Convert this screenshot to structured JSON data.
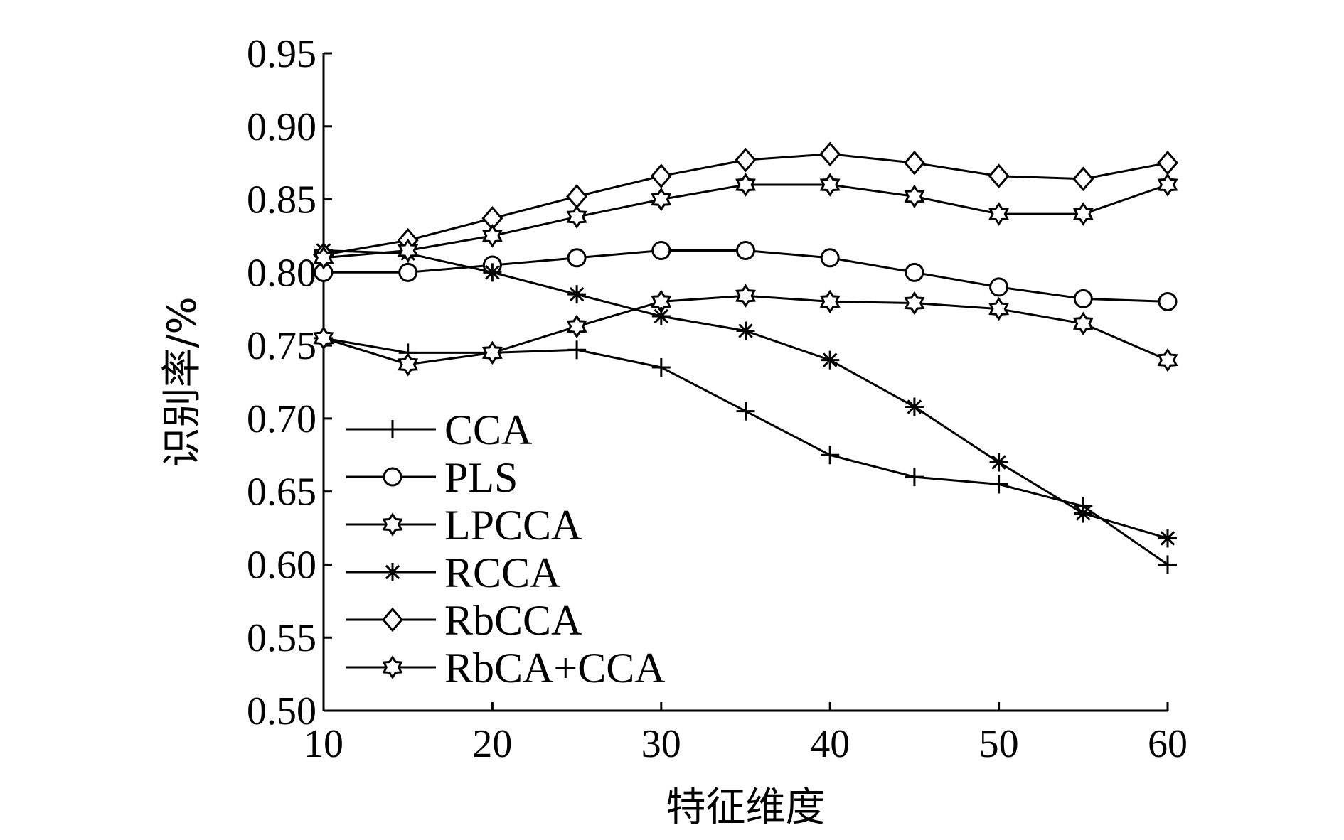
{
  "chart_data": {
    "type": "line",
    "xlabel": "特征维度",
    "ylabel": "识别率/%",
    "xlim": [
      10,
      60
    ],
    "ylim": [
      0.5,
      0.95
    ],
    "x_ticks": [
      "10",
      "20",
      "30",
      "40",
      "50",
      "60"
    ],
    "y_ticks": [
      "0.50",
      "0.55",
      "0.60",
      "0.65",
      "0.70",
      "0.75",
      "0.80",
      "0.85",
      "0.90",
      "0.95"
    ],
    "x": [
      10,
      15,
      20,
      25,
      30,
      35,
      40,
      45,
      50,
      55,
      60
    ],
    "legend_position": "lower-left",
    "grid": false,
    "series": [
      {
        "name": "CCA",
        "marker": "plus",
        "values": [
          0.755,
          0.745,
          0.745,
          0.747,
          0.735,
          0.705,
          0.675,
          0.66,
          0.655,
          0.64,
          0.6
        ]
      },
      {
        "name": "PLS",
        "marker": "circle",
        "values": [
          0.8,
          0.8,
          0.805,
          0.81,
          0.815,
          0.815,
          0.81,
          0.8,
          0.79,
          0.782,
          0.78
        ]
      },
      {
        "name": "LPCCA",
        "marker": "star",
        "values": [
          0.755,
          0.737,
          0.745,
          0.763,
          0.78,
          0.784,
          0.78,
          0.779,
          0.775,
          0.765,
          0.74
        ]
      },
      {
        "name": "RCCA",
        "marker": "asterisk",
        "values": [
          0.815,
          0.813,
          0.8,
          0.785,
          0.77,
          0.76,
          0.74,
          0.708,
          0.67,
          0.635,
          0.618
        ]
      },
      {
        "name": "RbCCA",
        "marker": "diamond",
        "values": [
          0.812,
          0.822,
          0.837,
          0.852,
          0.866,
          0.877,
          0.881,
          0.875,
          0.866,
          0.864,
          0.875
        ]
      },
      {
        "name": "RbCA+CCA",
        "marker": "star",
        "values": [
          0.81,
          0.815,
          0.825,
          0.838,
          0.85,
          0.86,
          0.86,
          0.852,
          0.84,
          0.84,
          0.86
        ]
      }
    ]
  }
}
